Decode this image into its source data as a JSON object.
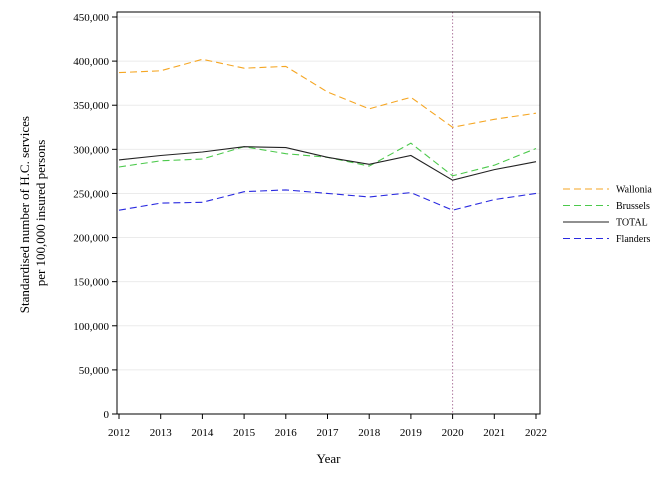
{
  "chart_data": {
    "type": "line",
    "title": "",
    "xlabel": "Year",
    "ylabel_lines": [
      "Standardised number of H.C. services",
      "per 100,000 insured persons"
    ],
    "x": [
      2012,
      2013,
      2014,
      2015,
      2016,
      2017,
      2018,
      2019,
      2020,
      2021,
      2022
    ],
    "x_tick_labels": [
      "2012",
      "2013",
      "2014",
      "2015",
      "2016",
      "2017",
      "2018",
      "2019",
      "2020",
      "2021",
      "2022"
    ],
    "ylim": [
      0,
      450000
    ],
    "y_ticks": [
      0,
      50000,
      100000,
      150000,
      200000,
      250000,
      300000,
      350000,
      400000,
      450000
    ],
    "y_tick_labels": [
      "0",
      "50,000",
      "100,000",
      "150,000",
      "200,000",
      "250,000",
      "300,000",
      "350,000",
      "400,000",
      "450,000"
    ],
    "grid": "horizontal",
    "reference_line_x": 2020,
    "legend_position": "right",
    "series": [
      {
        "name": "Wallonia",
        "color": "#f5a623",
        "dashed": true,
        "values": [
          387000,
          389000,
          402000,
          392000,
          394000,
          365000,
          346000,
          359000,
          325000,
          334000,
          341000
        ]
      },
      {
        "name": "Brussels",
        "color": "#4cc94c",
        "dashed": true,
        "values": [
          280000,
          287000,
          289000,
          303000,
          295000,
          291000,
          281000,
          307000,
          270000,
          282000,
          301000
        ]
      },
      {
        "name": "TOTAL",
        "color": "#222222",
        "dashed": false,
        "values": [
          288000,
          293000,
          297000,
          303000,
          302000,
          291000,
          283000,
          293000,
          265000,
          277000,
          286000
        ]
      },
      {
        "name": "Flanders",
        "color": "#2a2ae0",
        "dashed": true,
        "values": [
          231000,
          239000,
          240000,
          252000,
          254000,
          250000,
          246000,
          251000,
          231000,
          243000,
          250000
        ]
      }
    ]
  }
}
